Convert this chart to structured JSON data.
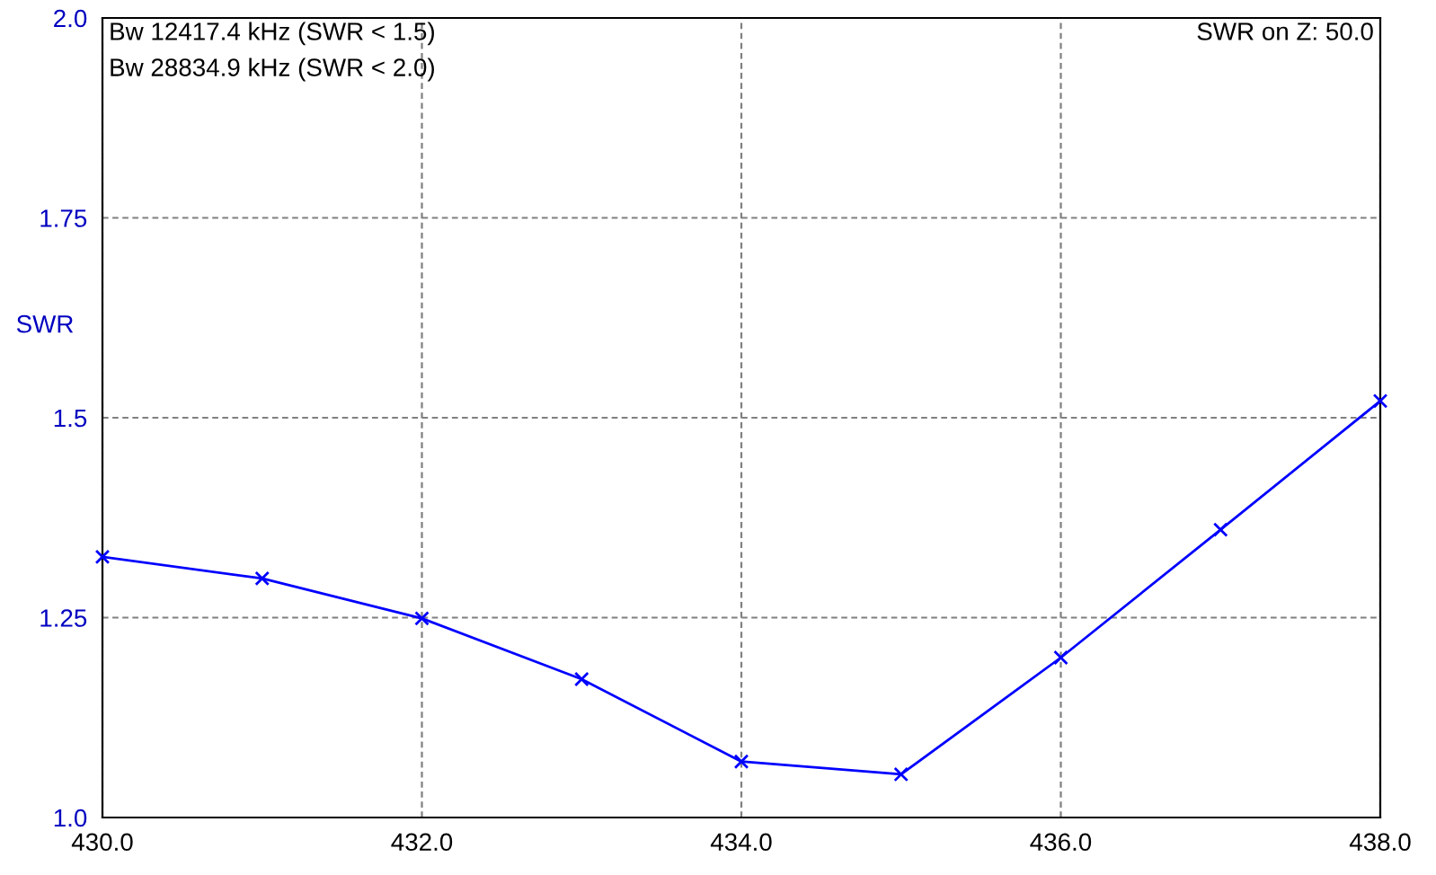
{
  "chart_data": {
    "type": "line",
    "ylabel": "SWR",
    "x": [
      430,
      431,
      432,
      433,
      434,
      435,
      436,
      437,
      438
    ],
    "series": [
      {
        "color": "#0000ff",
        "values": [
          1.326,
          1.299,
          1.249,
          1.173,
          1.07,
          1.054,
          1.2,
          1.36,
          1.521
        ]
      }
    ],
    "xlim": [
      430,
      438
    ],
    "xticks": [
      {
        "value": 430,
        "label": "430.0"
      },
      {
        "value": 432,
        "label": "432.0"
      },
      {
        "value": 434,
        "label": "434.0"
      },
      {
        "value": 436,
        "label": "436.0"
      },
      {
        "value": 438,
        "label": "438.0"
      }
    ],
    "ylim": [
      1.0,
      2.0
    ],
    "yticks": [
      {
        "value": 1.0,
        "label": "1.0"
      },
      1.25,
      1.5,
      1.75,
      {
        "value": 2.0,
        "label": "2.0"
      }
    ],
    "grid": true,
    "marker": "cross",
    "line_style": "solid",
    "legend": false,
    "annotations": [
      "Bw 12417.4 kHz (SWR < 1.5)",
      "Bw 28834.9 kHz (SWR < 2.0)",
      "SWR on Z: 50.0"
    ]
  }
}
